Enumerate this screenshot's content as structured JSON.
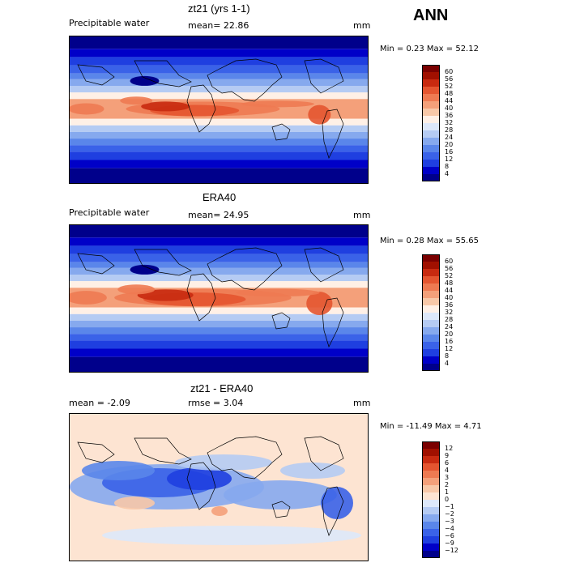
{
  "season": "ANN",
  "panels": [
    {
      "title": "zt21 (yrs 1-1)",
      "left_label": "Precipitable water",
      "mean_label": "mean=  22.86",
      "unit": "mm",
      "minmax": "Min =    0.23 Max =   52.12",
      "palette": [
        "#00008b",
        "#0000c8",
        "#1f3fe0",
        "#3a62e8",
        "#5a86ea",
        "#86a9ee",
        "#b5cbf3",
        "#dde8fa",
        "#fff0e6",
        "#f8c8a8",
        "#f4a07a",
        "#ee7a52",
        "#e45530",
        "#c82a10",
        "#a01000",
        "#7a0000"
      ],
      "levels": [
        "60",
        "56",
        "52",
        "48",
        "44",
        "40",
        "36",
        "32",
        "28",
        "24",
        "20",
        "16",
        "12",
        "8",
        "4"
      ]
    },
    {
      "title": "ERA40",
      "left_label": "Precipitable water",
      "mean_label": "mean=  24.95",
      "unit": "mm",
      "minmax": "Min =    0.28 Max =   55.65",
      "palette": [
        "#00008b",
        "#0000c8",
        "#1f3fe0",
        "#3a62e8",
        "#5a86ea",
        "#86a9ee",
        "#b5cbf3",
        "#dde8fa",
        "#fff0e6",
        "#f8c8a8",
        "#f4a07a",
        "#ee7a52",
        "#e45530",
        "#c82a10",
        "#a01000",
        "#7a0000"
      ],
      "levels": [
        "60",
        "56",
        "52",
        "48",
        "44",
        "40",
        "36",
        "32",
        "28",
        "24",
        "20",
        "16",
        "12",
        "8",
        "4"
      ]
    },
    {
      "title": "zt21 - ERA40",
      "left_label": "mean =   -2.09",
      "mean_label": "rmse =    3.04",
      "unit": "mm",
      "minmax": "Min = -11.49 Max =    4.71",
      "palette": [
        "#00008b",
        "#0000c8",
        "#1f3fe0",
        "#3a62e8",
        "#5a86ea",
        "#86a9ee",
        "#b5cbf3",
        "#dde8fa",
        "#fde4d2",
        "#f8c8a8",
        "#f4a07a",
        "#ee7a52",
        "#e45530",
        "#c82a10",
        "#a01000",
        "#7a0000"
      ],
      "levels": [
        "12",
        "9",
        "6",
        "4",
        "3",
        "2",
        "1",
        "0",
        "−1",
        "−2",
        "−3",
        "−4",
        "−6",
        "−9",
        "−12"
      ]
    }
  ]
}
